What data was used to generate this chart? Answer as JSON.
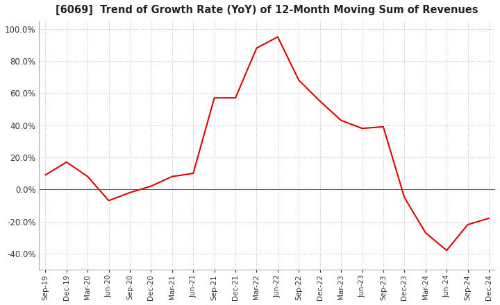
{
  "title": "[6069]  Trend of Growth Rate (YoY) of 12-Month Moving Sum of Revenues",
  "title_fontsize": 10.5,
  "ylim": [
    -50,
    105
  ],
  "yticks": [
    -40,
    -20,
    0,
    20,
    40,
    60,
    80,
    100
  ],
  "background_color": "#ffffff",
  "grid_color": "#bbbbbb",
  "line_color": "#dd0000",
  "dates": [
    "Sep-19",
    "Dec-19",
    "Mar-20",
    "Jun-20",
    "Sep-20",
    "Dec-20",
    "Mar-21",
    "Jun-21",
    "Sep-21",
    "Dec-21",
    "Mar-22",
    "Jun-22",
    "Sep-22",
    "Dec-22",
    "Mar-23",
    "Jun-23",
    "Sep-23",
    "Dec-23",
    "Mar-24",
    "Jun-24",
    "Sep-24",
    "Dec-24"
  ],
  "values": [
    9.0,
    17.0,
    8.0,
    -7.0,
    -2.0,
    2.0,
    8.0,
    10.0,
    57.0,
    57.0,
    88.0,
    95.0,
    68.0,
    55.0,
    43.0,
    38.0,
    39.0,
    -5.0,
    -27.0,
    -38.0,
    -22.0,
    -18.0
  ]
}
